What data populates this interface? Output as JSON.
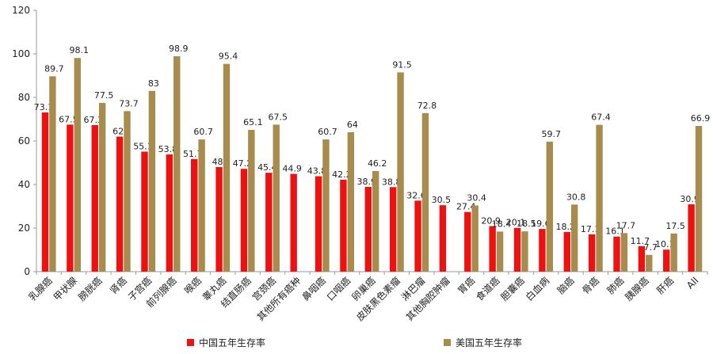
{
  "chart_data": {
    "type": "bar",
    "title": "",
    "xlabel": "",
    "ylabel": "",
    "ylim": [
      0,
      120
    ],
    "yticks": [
      0,
      20,
      40,
      60,
      80,
      100,
      120
    ],
    "grid": false,
    "legend_position": "bottom",
    "categories": [
      "乳腺癌",
      "甲状腺",
      "膀胱癌",
      "肾癌",
      "子宫癌",
      "前列腺癌",
      "喉癌",
      "睾丸癌",
      "结直肠癌",
      "宫颈癌",
      "其他所有癌种",
      "鼻咽癌",
      "口咽癌",
      "卵巢癌",
      "皮肤黑色素瘤",
      "淋巴瘤",
      "其他胸腔肿瘤",
      "胃癌",
      "食道癌",
      "胆囊癌",
      "白血病",
      "脑癌",
      "骨癌",
      "肺癌",
      "胰腺癌",
      "肝癌",
      "All"
    ],
    "series": [
      {
        "name": "中国五年生存率",
        "color": "#ee1111",
        "values": [
          73.1,
          67.5,
          67.3,
          62,
          55.1,
          53.8,
          51.7,
          48,
          47.2,
          45.4,
          44.9,
          43.8,
          42.2,
          38.9,
          38.8,
          32.6,
          30.5,
          27.4,
          20.9,
          20.1,
          19.6,
          18.2,
          17.1,
          16.1,
          11.7,
          10.1,
          30.9
        ],
        "labels": [
          "73.1",
          "67.5",
          "67.3",
          "62",
          "55.1",
          "53.8",
          "51.7",
          "48",
          "47.2",
          "45.4",
          "44.9",
          "43.8",
          "42.2",
          "38.9",
          "38.8",
          "32.6",
          "30.5",
          "27.4",
          "20.9",
          "20.1",
          "19.6",
          "18.2",
          "17.1",
          "16.1",
          "11.7",
          "10.1",
          "30.9"
        ]
      },
      {
        "name": "美国五年生存率",
        "color": "#a88c4e",
        "values": [
          89.7,
          98.1,
          77.5,
          73.7,
          83,
          98.9,
          60.7,
          95.4,
          65.1,
          67.5,
          null,
          60.7,
          64,
          46.2,
          91.5,
          72.8,
          null,
          30.4,
          18.4,
          18.5,
          59.7,
          30.8,
          67.4,
          17.7,
          7.7,
          17.5,
          66.9
        ],
        "labels": [
          "89.7",
          "98.1",
          "77.5",
          "73.7",
          "83",
          "98.9",
          "60.7",
          "95.4",
          "65.1",
          "67.5",
          null,
          "60.7",
          "64",
          "46.2",
          "91.5",
          "72.8",
          null,
          "30.4",
          "18.4",
          "18.5",
          "59.7",
          "30.8",
          "67.4",
          "17.7",
          "7.7",
          "17.5",
          "66.9"
        ]
      }
    ]
  }
}
